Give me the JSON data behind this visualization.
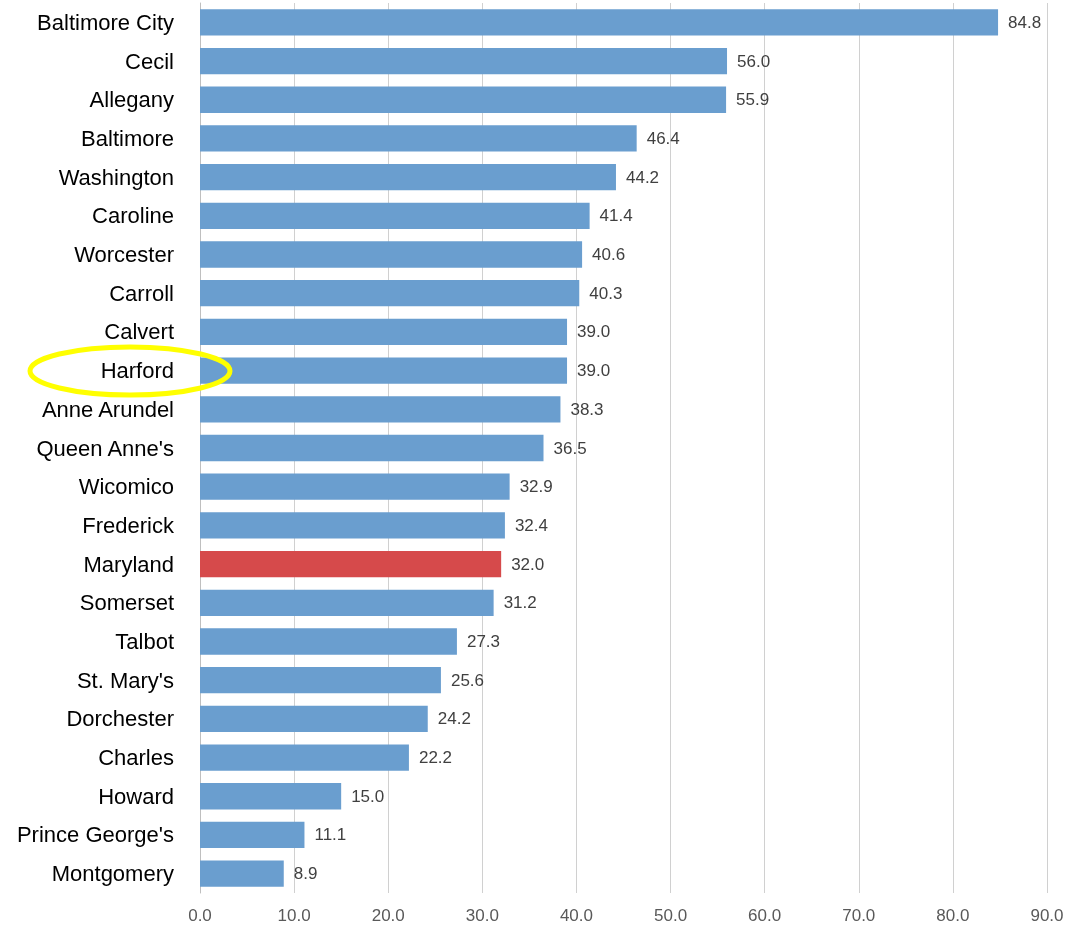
{
  "chart_data": {
    "type": "bar",
    "orientation": "horizontal",
    "categories": [
      "Baltimore City",
      "Cecil",
      "Allegany",
      "Baltimore",
      "Washington",
      "Caroline",
      "Worcester",
      "Carroll",
      "Calvert",
      "Harford",
      "Anne Arundel",
      "Queen Anne's",
      "Wicomico",
      "Frederick",
      "Maryland",
      "Somerset",
      "Talbot",
      "St. Mary's",
      "Dorchester",
      "Charles",
      "Howard",
      "Prince George's",
      "Montgomery"
    ],
    "values": [
      84.8,
      56.0,
      55.9,
      46.4,
      44.2,
      41.4,
      40.6,
      40.3,
      39.0,
      39.0,
      38.3,
      36.5,
      32.9,
      32.4,
      32.0,
      31.2,
      27.3,
      25.6,
      24.2,
      22.2,
      15.0,
      11.1,
      8.9
    ],
    "value_labels": [
      "84.8",
      "56.0",
      "55.9",
      "46.4",
      "44.2",
      "41.4",
      "40.6",
      "40.3",
      "39.0",
      "39.0",
      "38.3",
      "36.5",
      "32.9",
      "32.4",
      "32.0",
      "31.2",
      "27.3",
      "25.6",
      "24.2",
      "22.2",
      "15.0",
      "11.1",
      "8.9"
    ],
    "colors": [
      "#6a9ecf",
      "#6a9ecf",
      "#6a9ecf",
      "#6a9ecf",
      "#6a9ecf",
      "#6a9ecf",
      "#6a9ecf",
      "#6a9ecf",
      "#6a9ecf",
      "#6a9ecf",
      "#6a9ecf",
      "#6a9ecf",
      "#6a9ecf",
      "#6a9ecf",
      "#d64a4b",
      "#6a9ecf",
      "#6a9ecf",
      "#6a9ecf",
      "#6a9ecf",
      "#6a9ecf",
      "#6a9ecf",
      "#6a9ecf",
      "#6a9ecf"
    ],
    "xlim": [
      0,
      90
    ],
    "xticks": [
      {
        "value": 0,
        "label": "0.0"
      },
      {
        "value": 10,
        "label": "10.0"
      },
      {
        "value": 20,
        "label": "20.0"
      },
      {
        "value": 30,
        "label": "30.0"
      },
      {
        "value": 40,
        "label": "40.0"
      },
      {
        "value": 50,
        "label": "50.0"
      },
      {
        "value": 60,
        "label": "60.0"
      },
      {
        "value": 70,
        "label": "70.0"
      },
      {
        "value": 80,
        "label": "80.0"
      },
      {
        "value": 90,
        "label": "90.0"
      }
    ],
    "grid": "x"
  }
}
